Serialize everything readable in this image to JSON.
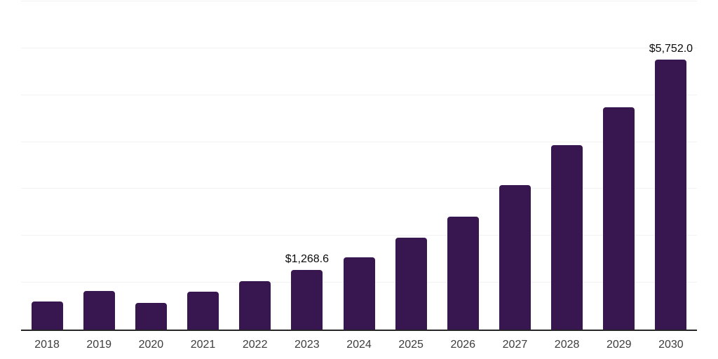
{
  "chart_data": {
    "type": "bar",
    "title": "",
    "xlabel": "",
    "ylabel": "",
    "categories": [
      "2018",
      "2019",
      "2020",
      "2021",
      "2022",
      "2023",
      "2024",
      "2025",
      "2026",
      "2027",
      "2028",
      "2029",
      "2030"
    ],
    "values": [
      597,
      816,
      567,
      801,
      1029,
      1268.6,
      1547,
      1955,
      2412,
      3088,
      3929,
      4740,
      5752
    ],
    "data_labels": [
      {
        "index": 5,
        "text": "$1,268.6"
      },
      {
        "index": 12,
        "text": "$5,752.0"
      }
    ],
    "ylim": [
      0,
      7000
    ],
    "grid": true,
    "gridline_step": 1000,
    "legend": "none",
    "colors": {
      "bar": "#38164F",
      "gridline": "#f2f2f2",
      "axis": "#262626",
      "tick_label": "#3d3d3d",
      "data_label": "#0a0a0a",
      "background": "#ffffff"
    }
  }
}
